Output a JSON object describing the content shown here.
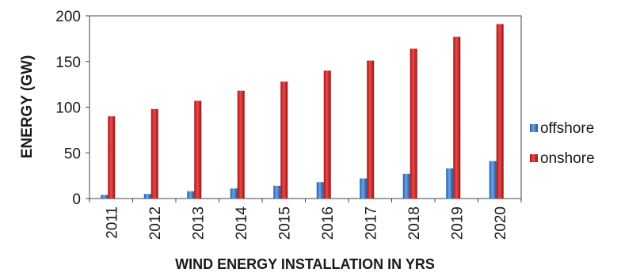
{
  "chart_data": {
    "type": "bar",
    "xlabel": "WIND ENERGY INSTALLATION IN YRS",
    "ylabel": "ENERGY (GW)",
    "ylim": [
      0,
      200
    ],
    "yticks": [
      0,
      50,
      100,
      150,
      200
    ],
    "categories": [
      "2011",
      "2012",
      "2013",
      "2014",
      "2015",
      "2016",
      "2017",
      "2018",
      "2019",
      "2020"
    ],
    "series": [
      {
        "name": "offshore",
        "color": "#3a78c8",
        "values": [
          4,
          5,
          8,
          11,
          14,
          18,
          22,
          27,
          33,
          41
        ]
      },
      {
        "name": "onshore",
        "color": "#c81e1e",
        "values": [
          90,
          98,
          107,
          118,
          128,
          140,
          151,
          164,
          177,
          191
        ]
      }
    ],
    "grid": false,
    "legend_position": "right"
  }
}
